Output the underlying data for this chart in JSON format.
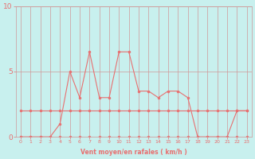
{
  "hours": [
    0,
    1,
    2,
    3,
    4,
    5,
    6,
    7,
    8,
    9,
    10,
    11,
    12,
    13,
    14,
    15,
    16,
    17,
    18,
    19,
    20,
    21,
    22,
    23
  ],
  "vent_moyen": [
    0,
    0,
    0,
    0,
    0,
    0,
    0,
    0,
    0,
    0,
    0,
    0,
    0,
    0,
    0,
    0,
    0,
    0,
    0,
    0,
    0,
    0,
    0,
    0
  ],
  "flat_line": [
    2,
    2,
    2,
    2,
    2,
    2,
    2,
    2,
    2,
    2,
    2,
    2,
    2,
    2,
    2,
    2,
    2,
    2,
    2,
    2,
    2,
    2,
    2,
    2
  ],
  "rafales": [
    0,
    0,
    0,
    0,
    1,
    5,
    3,
    6.5,
    3,
    3,
    6.5,
    6.5,
    3.5,
    3.5,
    3,
    3.5,
    3.5,
    3,
    0,
    0,
    0,
    0,
    2,
    2
  ],
  "xlabel": "Vent moyen/en rafales ( km/h )",
  "ylim": [
    0,
    10
  ],
  "yticks": [
    0,
    5,
    10
  ],
  "xticks": [
    0,
    1,
    2,
    3,
    4,
    5,
    6,
    7,
    8,
    9,
    10,
    11,
    12,
    13,
    14,
    15,
    16,
    17,
    18,
    19,
    20,
    21,
    22,
    23
  ],
  "bg_color": "#c8f0ee",
  "line_color": "#e87070",
  "grid_color": "#d09898",
  "line_width": 0.8,
  "marker_size": 2.0,
  "xlabel_fontsize": 5.5,
  "ytick_fontsize": 6.5,
  "xtick_fontsize": 4.5
}
